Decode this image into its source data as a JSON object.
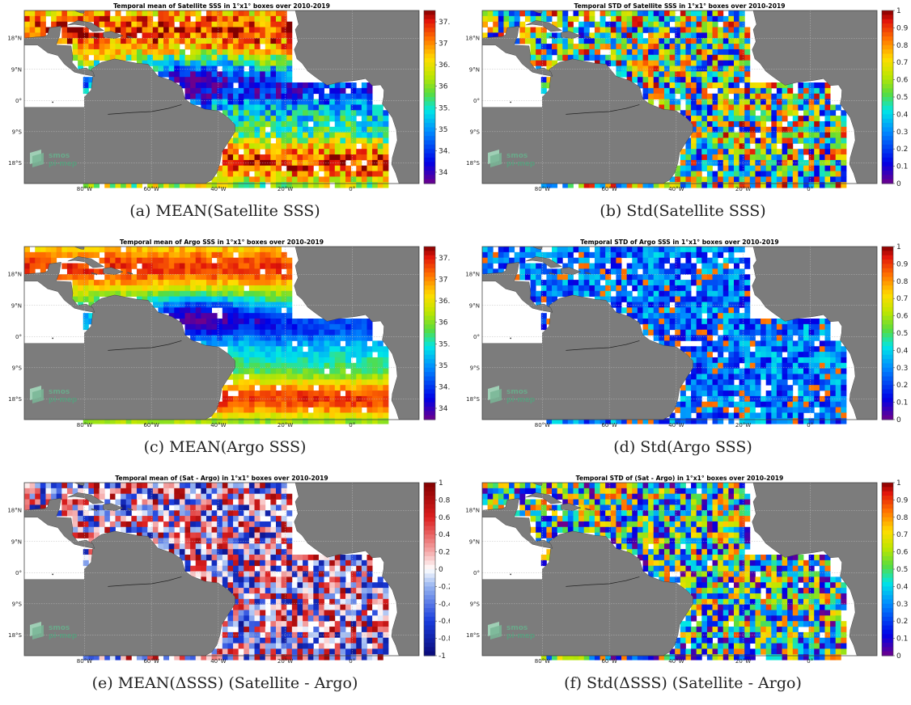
{
  "panels": [
    {
      "id": "a",
      "title": "Temporal mean of Satellite SSS in 1°x1° boxes over 2010-2019",
      "caption": "(a) MEAN(Satellite SSS)",
      "colormap": "jet",
      "colorbar_ticks": [
        "37.5",
        "37",
        "36.5",
        "36",
        "35.5",
        "35",
        "34.5",
        "34"
      ],
      "field": "mean_sat"
    },
    {
      "id": "b",
      "title": "Temporal STD of Satellite SSS in 1°x1° boxes over 2010-2019",
      "caption": "(b) Std(Satellite SSS)",
      "colormap": "jet",
      "colorbar_ticks": [
        "1",
        "0.9",
        "0.8",
        "0.7",
        "0.6",
        "0.5",
        "0.4",
        "0.3",
        "0.2",
        "0.1",
        "0"
      ],
      "field": "std_sat"
    },
    {
      "id": "c",
      "title": "Temporal mean of Argo SSS in 1°x1° boxes over 2010-2019",
      "caption": "(c) MEAN(Argo SSS)",
      "colormap": "jet",
      "colorbar_ticks": [
        "37.5",
        "37",
        "36.5",
        "36",
        "35.5",
        "35",
        "34.5",
        "34"
      ],
      "field": "mean_argo"
    },
    {
      "id": "d",
      "title": "Temporal STD of Argo SSS in 1°x1° boxes over 2010-2019",
      "caption": "(d) Std(Argo SSS)",
      "colormap": "jet",
      "colorbar_ticks": [
        "1",
        "0.9",
        "0.8",
        "0.7",
        "0.6",
        "0.5",
        "0.4",
        "0.3",
        "0.2",
        "0.1",
        "0"
      ],
      "field": "std_argo"
    },
    {
      "id": "e",
      "title": "Temporal mean of (Sat - Argo) in 1°x1° boxes over 2010-2019",
      "caption": "(e) MEAN(ΔSSS) (Satellite - Argo)",
      "colormap": "diverging-blue-white-red",
      "colorbar_ticks": [
        "1",
        "0.8",
        "0.6",
        "0.4",
        "0.2",
        "0",
        "-0.2",
        "-0.4",
        "-0.6",
        "-0.8",
        "-1"
      ],
      "field": "mean_diff"
    },
    {
      "id": "f",
      "title": "Temporal STD of (Sat - Argo) in 1°x1° boxes over 2010-2019",
      "caption": "(f) Std(ΔSSS) (Satellite - Argo)",
      "colormap": "jet",
      "colorbar_ticks": [
        "1",
        "0.9",
        "0.8",
        "0.7",
        "0.6",
        "0.5",
        "0.4",
        "0.3",
        "0.2",
        "0.1",
        "0"
      ],
      "field": "std_diff"
    }
  ],
  "map": {
    "lat_labels": [
      "18°N",
      "9°N",
      "0°",
      "9°S",
      "18°S"
    ],
    "lon_labels": [
      "80°W",
      "60°W",
      "40°W",
      "20°W",
      "0°"
    ],
    "land_color": "#7c7c7c",
    "ocean_color": "#ffffff",
    "grid_color": "#bbbbbb"
  },
  "logo": {
    "line1": "smos",
    "line2": "pi-mep"
  }
}
